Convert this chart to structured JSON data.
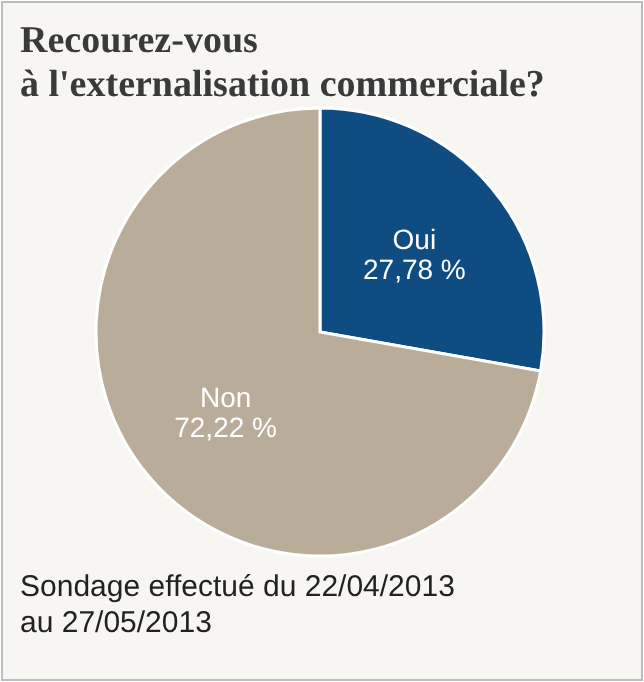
{
  "chart_data": {
    "type": "pie",
    "title": "Recourez-vous\nà l'externalisation commerciale?",
    "categories": [
      "Oui",
      "Non"
    ],
    "values": [
      27.78,
      72.22
    ],
    "colors": [
      "#0f4c81",
      "#b9ad9a"
    ],
    "value_labels": [
      "27,78 %",
      "72,22 %"
    ],
    "annotations": [
      "Sondage effectué du 22/04/2013\nau 27/05/2013"
    ]
  }
}
